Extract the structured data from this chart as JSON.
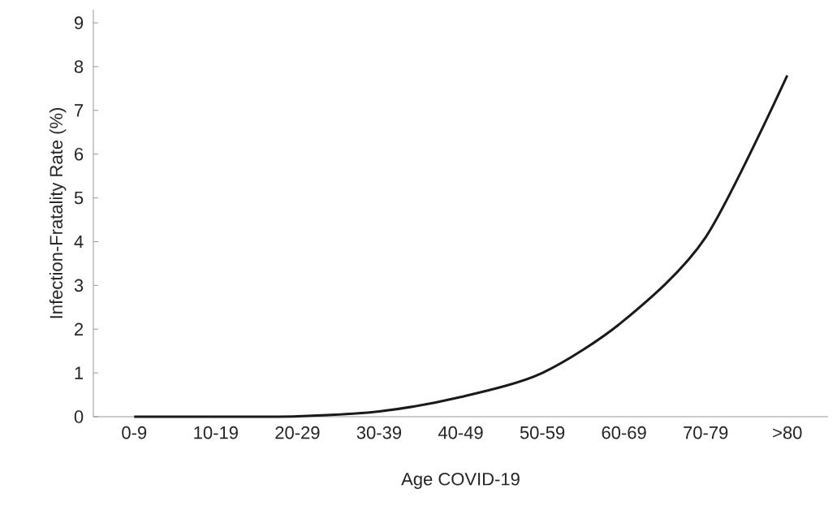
{
  "chart_data": {
    "type": "line",
    "xlabel": "Age COVID-19",
    "ylabel": "Infection-Fratality  Rate (%)",
    "categories": [
      "0-9",
      "10-19",
      "20-29",
      "30-39",
      "40-49",
      "50-59",
      "60-69",
      "70-79",
      ">80"
    ],
    "series": [
      {
        "color": "#1a1a1a",
        "values": [
          0,
          0,
          0.01,
          0.12,
          0.45,
          1.0,
          2.2,
          4.1,
          7.8
        ]
      }
    ],
    "ylim": [
      0,
      9.3
    ],
    "yticks": [
      0,
      1,
      2,
      3,
      4,
      5,
      6,
      7,
      8,
      9
    ],
    "marker": "none",
    "line_style": "solid"
  }
}
